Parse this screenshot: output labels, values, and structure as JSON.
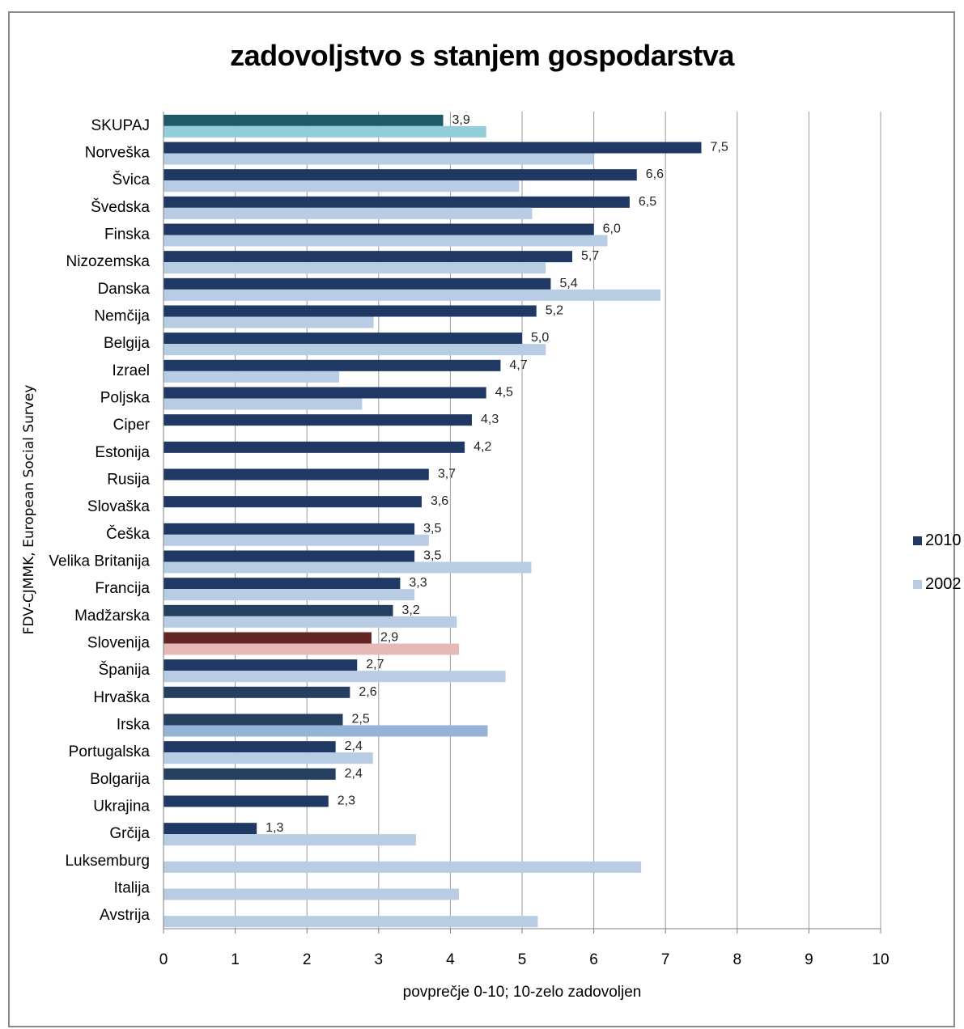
{
  "chart_data": {
    "type": "bar",
    "orientation": "horizontal",
    "title": "zadovoljstvo s stanjem gospodarstva",
    "xlabel": "povprečje 0-10; 10-zelo zadovoljen",
    "source": "FDV-CJMMK, European Social Survey",
    "xlim": [
      0,
      10
    ],
    "xticks": [
      "0",
      "1",
      "2",
      "3",
      "4",
      "5",
      "6",
      "7",
      "8",
      "9",
      "10"
    ],
    "grid": "vertical",
    "legend_position": "right",
    "categories": [
      "SKUPAJ",
      "Norveška",
      "Švica",
      "Švedska",
      "Finska",
      "Nizozemska",
      "Danska",
      "Nemčija",
      "Belgija",
      "Izrael",
      "Poljska",
      "Ciper",
      "Estonija",
      "Rusija",
      "Slovaška",
      "Češka",
      "Velika Britanija",
      "Francija",
      "Madžarska",
      "Slovenija",
      "Španija",
      "Hrvaška",
      "Irska",
      "Portugalska",
      "Bolgarija",
      "Ukrajina",
      "Grčija",
      "Luksemburg",
      "Italija",
      "Avstrija"
    ],
    "series": [
      {
        "name": "2010",
        "color": "#1f3864",
        "values": [
          3.9,
          7.5,
          6.6,
          6.5,
          6.0,
          5.7,
          5.4,
          5.2,
          5.0,
          4.7,
          4.5,
          4.3,
          4.2,
          3.7,
          3.6,
          3.5,
          3.5,
          3.3,
          3.2,
          2.9,
          2.7,
          2.6,
          2.5,
          2.4,
          2.4,
          2.3,
          1.3,
          null,
          null,
          null
        ],
        "labels": [
          "3,9",
          "7,5",
          "6,6",
          "6,5",
          "6,0",
          "5,7",
          "5,4",
          "5,2",
          "5,0",
          "4,7",
          "4,5",
          "4,3",
          "4,2",
          "3,7",
          "3,6",
          "3,5",
          "3,5",
          "3,3",
          "3,2",
          "2,9",
          "2,7",
          "2,6",
          "2,5",
          "2,4",
          "2,4",
          "2,3",
          "1,3",
          "",
          "",
          ""
        ],
        "highlight_colors": {
          "0": "#215868",
          "18": "#243f60",
          "19": "#632523",
          "21": "#243f60",
          "22": "#243f60",
          "24": "#243f60"
        }
      },
      {
        "name": "2002",
        "color": "#b8cce4",
        "values": [
          4.5,
          6.0,
          4.96,
          5.14,
          6.19,
          5.33,
          6.93,
          2.93,
          5.33,
          2.45,
          2.77,
          null,
          null,
          null,
          null,
          3.7,
          5.13,
          3.5,
          4.09,
          4.12,
          4.77,
          null,
          4.52,
          2.92,
          null,
          null,
          3.52,
          6.66,
          4.12,
          5.22
        ],
        "highlight_colors": {
          "0": "#92cddc",
          "19": "#e6b9b8",
          "22": "#95b3d7"
        }
      }
    ]
  }
}
